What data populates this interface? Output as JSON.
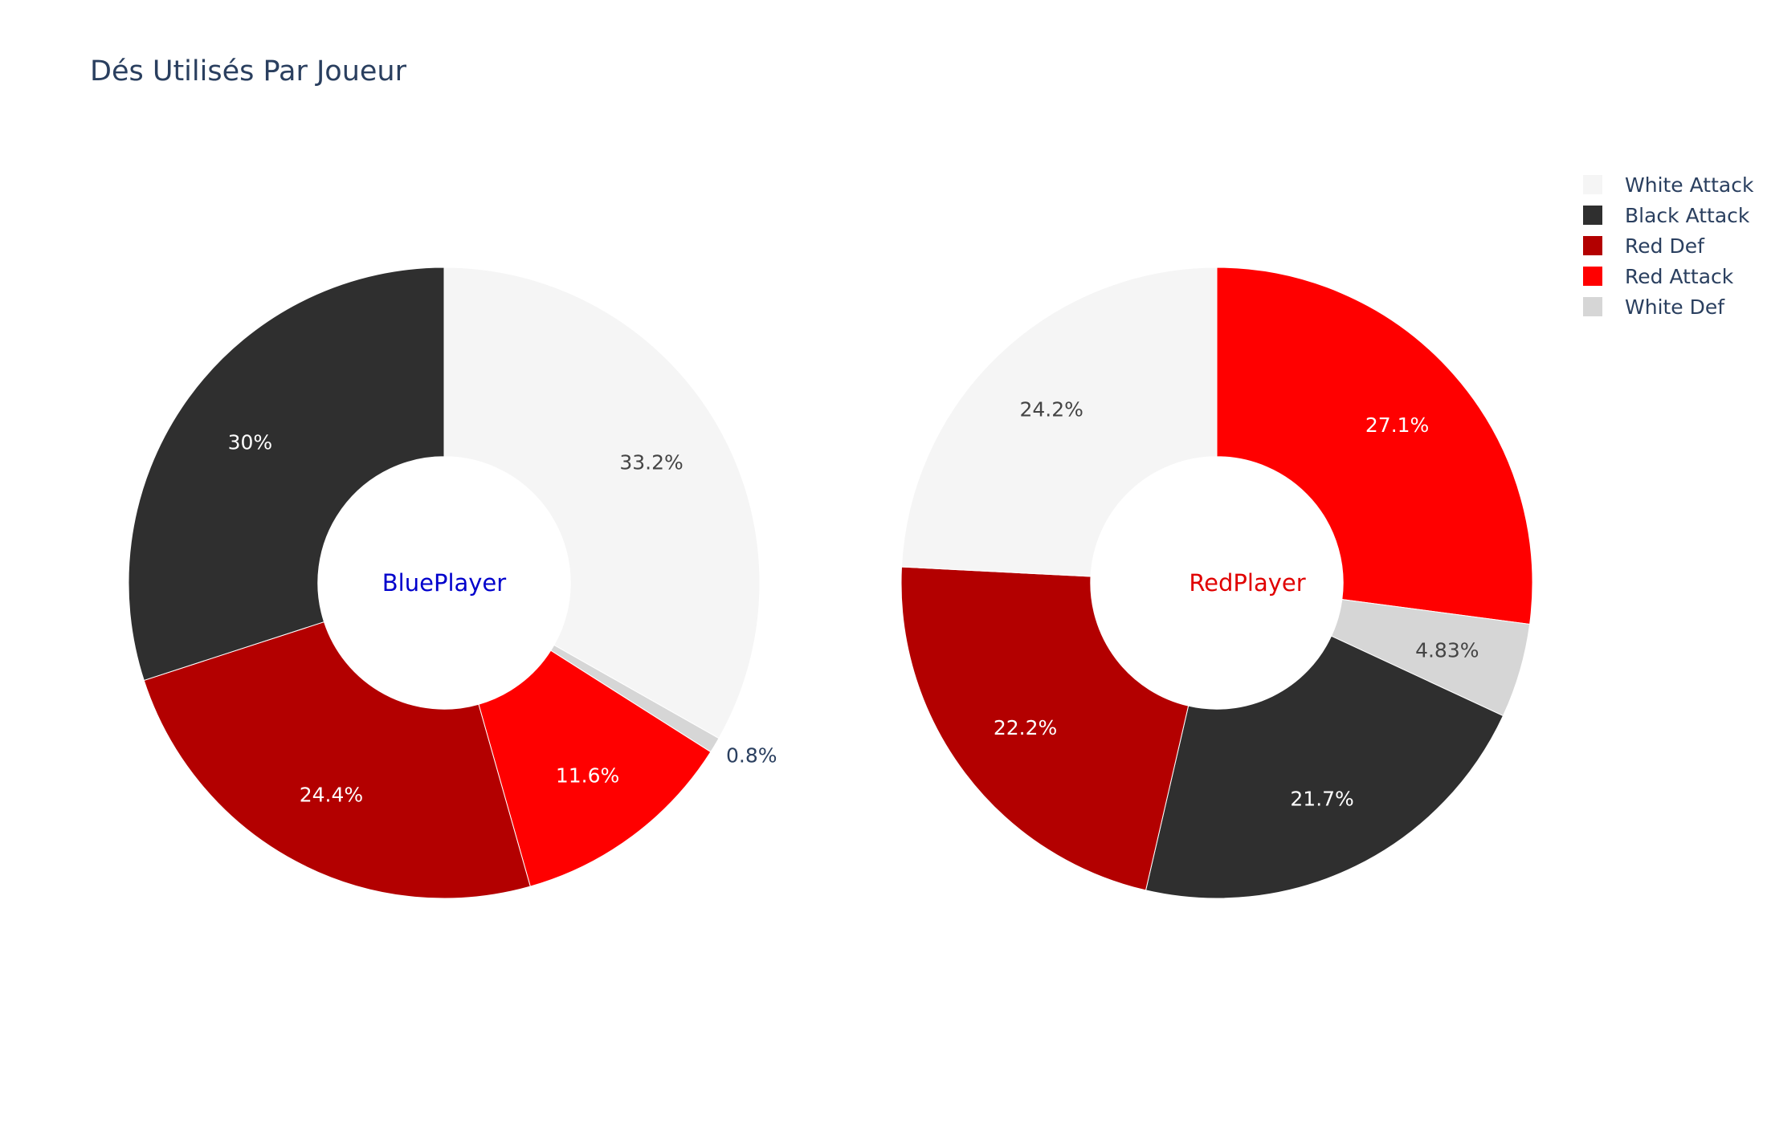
{
  "chart_data": {
    "type": "pie",
    "title": "Dés Utilisés Par Joueur",
    "legend": {
      "placement": "top-right",
      "entries": [
        {
          "name": "White Attack",
          "color": "#f5f5f5"
        },
        {
          "name": "Black Attack",
          "color": "#2f2f2f"
        },
        {
          "name": "Red Def",
          "color": "#b30000"
        },
        {
          "name": "Red Attack",
          "color": "#ff0000"
        },
        {
          "name": "White Def",
          "color": "#d6d6d6"
        }
      ]
    },
    "pies": [
      {
        "name": "BluePlayer",
        "label_color": "#0000cc",
        "hole": 0.4,
        "slices": [
          {
            "category": "White Attack",
            "value": 33.2,
            "label": "33.2%",
            "color": "#f5f5f5",
            "text_color": "#444444"
          },
          {
            "category": "White Def",
            "value": 0.8,
            "label": "0.8%",
            "color": "#d6d6d6",
            "text_color": "#2a3f5f"
          },
          {
            "category": "Red Attack",
            "value": 11.6,
            "label": "11.6%",
            "color": "#ff0000",
            "text_color": "#ffffff"
          },
          {
            "category": "Red Def",
            "value": 24.4,
            "label": "24.4%",
            "color": "#b30000",
            "text_color": "#ffffff"
          },
          {
            "category": "Black Attack",
            "value": 30,
            "label": "30%",
            "color": "#2f2f2f",
            "text_color": "#ffffff"
          }
        ]
      },
      {
        "name": "RedPlayer",
        "label_color": "#e00000",
        "hole": 0.4,
        "slices": [
          {
            "category": "Red Attack",
            "value": 27.1,
            "label": "27.1%",
            "color": "#ff0000",
            "text_color": "#ffffff"
          },
          {
            "category": "White Def",
            "value": 4.83,
            "label": "4.83%",
            "color": "#d6d6d6",
            "text_color": "#444444"
          },
          {
            "category": "Black Attack",
            "value": 21.7,
            "label": "21.7%",
            "color": "#2f2f2f",
            "text_color": "#ffffff"
          },
          {
            "category": "Red Def",
            "value": 22.2,
            "label": "22.2%",
            "color": "#b30000",
            "text_color": "#ffffff"
          },
          {
            "category": "White Attack",
            "value": 24.2,
            "label": "24.2%",
            "color": "#f5f5f5",
            "text_color": "#444444"
          }
        ]
      }
    ]
  }
}
